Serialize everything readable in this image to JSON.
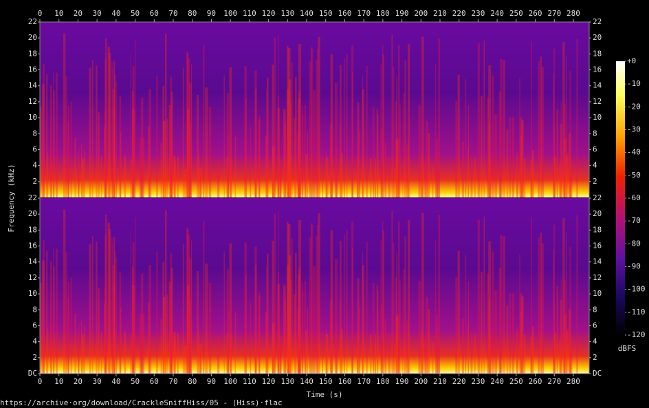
{
  "chart_data": {
    "type": "spectrogram",
    "x_label": "Time (s)",
    "y_label": "Frequency (kHz)",
    "xlim": [
      0,
      288.3
    ],
    "xticks": [
      0,
      10,
      20,
      30,
      40,
      50,
      60,
      70,
      80,
      90,
      100,
      110,
      120,
      130,
      140,
      150,
      160,
      170,
      180,
      190,
      200,
      210,
      220,
      230,
      240,
      250,
      260,
      270,
      280
    ],
    "channels": [
      {
        "ylim": [
          0,
          22
        ],
        "yticks": [
          2,
          4,
          6,
          8,
          10,
          12,
          14,
          16,
          18,
          20,
          22
        ]
      },
      {
        "ylim": [
          0,
          22
        ],
        "yticks": [
          {
            "value": 0,
            "label": "DC"
          },
          2,
          4,
          6,
          8,
          10,
          12,
          14,
          16,
          18,
          20,
          22
        ]
      }
    ],
    "colorbar": {
      "label": "dBFS",
      "lim": [
        -120,
        0
      ],
      "ticks": [
        {
          "value": 0,
          "label": "+0"
        },
        -10,
        -20,
        -30,
        -40,
        -50,
        -60,
        -70,
        -80,
        -90,
        -100,
        -110,
        -120
      ]
    },
    "footer": "https://archive·org/download/CrackleSniffHiss/05 - (Hiss)·flac"
  }
}
